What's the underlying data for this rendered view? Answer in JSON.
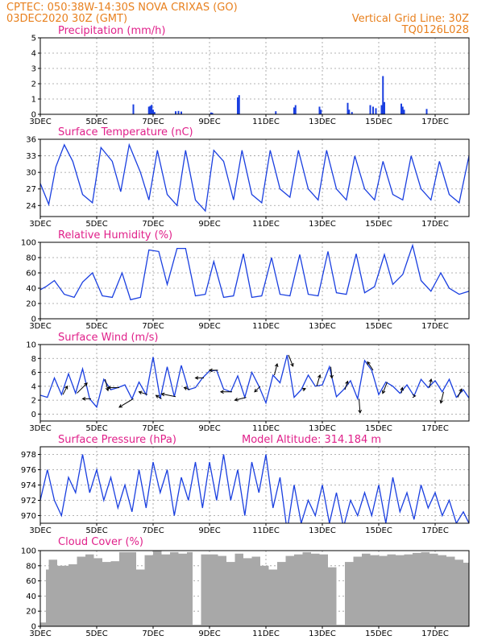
{
  "header": {
    "left_line1": "CPTEC:   050:38W-14:30S   NOVA CRIXAS (GO)",
    "left_line2": "03DEC2020 30Z (GMT)",
    "right_line1": "Vertical Grid Line: 30Z",
    "right_line2": "TQ0126L028"
  },
  "colors": {
    "header": "#e8801e",
    "title": "#e0208a",
    "line": "#1a3fe0",
    "bar": "#1a3fe0",
    "cloud": "#a8a8a8",
    "vector": "#000000"
  },
  "x_axis": {
    "ticks": [
      "3DEC",
      "5DEC",
      "7DEC",
      "9DEC",
      "11DEC",
      "13DEC",
      "15DEC",
      "17DEC"
    ],
    "tick_days": [
      3,
      5,
      7,
      9,
      11,
      13,
      15,
      17
    ],
    "range_days": [
      3,
      18.2
    ]
  },
  "chart_data": [
    {
      "type": "bar",
      "title": "Precipitation (mm/h)",
      "ylim": [
        0,
        5
      ],
      "yticks": [
        0,
        1,
        2,
        3,
        4,
        5
      ],
      "x": [
        6.3,
        6.85,
        6.9,
        6.95,
        7.0,
        7.05,
        7.8,
        7.9,
        8.0,
        9.05,
        9.1,
        10.0,
        10.05,
        11.35,
        12.0,
        12.05,
        12.9,
        12.95,
        13.9,
        13.95,
        14.05,
        14.7,
        14.8,
        14.9,
        15.1,
        15.15,
        15.2,
        15.8,
        15.85,
        15.9,
        16.7
      ],
      "values": [
        0.65,
        0.5,
        0.55,
        0.62,
        0.3,
        0.15,
        0.2,
        0.22,
        0.18,
        0.12,
        0.1,
        1.1,
        1.25,
        0.2,
        0.45,
        0.6,
        0.5,
        0.3,
        0.75,
        0.3,
        0.15,
        0.6,
        0.5,
        0.4,
        0.6,
        2.5,
        0.8,
        0.7,
        0.5,
        0.3,
        0.35
      ]
    },
    {
      "type": "line",
      "title": "Surface Temperature (nC)",
      "ylim": [
        22,
        36
      ],
      "yticks": [
        24,
        27,
        30,
        33,
        36
      ],
      "x": [
        3.0,
        3.3,
        3.55,
        3.85,
        4.15,
        4.5,
        4.85,
        5.15,
        5.55,
        5.85,
        6.15,
        6.55,
        6.85,
        7.15,
        7.5,
        7.85,
        8.15,
        8.5,
        8.85,
        9.15,
        9.5,
        9.85,
        10.15,
        10.5,
        10.85,
        11.15,
        11.5,
        11.85,
        12.15,
        12.5,
        12.85,
        13.15,
        13.5,
        13.85,
        14.15,
        14.5,
        14.85,
        15.15,
        15.5,
        15.85,
        16.15,
        16.5,
        16.85,
        17.15,
        17.5,
        17.85,
        18.2
      ],
      "values": [
        28,
        24.2,
        31,
        35,
        32,
        26,
        24.5,
        34.5,
        32,
        26.5,
        35,
        30,
        25,
        34,
        26,
        24,
        34,
        25,
        23,
        34,
        32,
        25,
        34,
        26,
        24.5,
        34,
        27,
        25.5,
        34,
        27,
        25,
        34,
        27,
        25,
        33,
        27,
        25,
        32,
        26,
        25,
        33,
        27,
        25,
        32,
        26,
        24.5,
        33
      ]
    },
    {
      "type": "line",
      "title": "Relative Humidity (%)",
      "ylim": [
        0,
        100
      ],
      "yticks": [
        0,
        20,
        40,
        60,
        80,
        100
      ],
      "x": [
        3.0,
        3.2,
        3.5,
        3.85,
        4.2,
        4.5,
        4.85,
        5.2,
        5.55,
        5.9,
        6.2,
        6.55,
        6.85,
        7.2,
        7.5,
        7.85,
        8.15,
        8.5,
        8.85,
        9.15,
        9.5,
        9.85,
        10.2,
        10.5,
        10.85,
        11.2,
        11.5,
        11.85,
        12.2,
        12.5,
        12.85,
        13.2,
        13.5,
        13.85,
        14.2,
        14.5,
        14.85,
        15.2,
        15.5,
        15.85,
        16.2,
        16.5,
        16.85,
        17.2,
        17.5,
        17.85,
        18.2
      ],
      "values": [
        38,
        42,
        50,
        32,
        28,
        48,
        60,
        30,
        28,
        60,
        25,
        28,
        90,
        88,
        45,
        92,
        92,
        30,
        32,
        75,
        28,
        30,
        85,
        28,
        30,
        80,
        32,
        30,
        84,
        32,
        30,
        88,
        34,
        32,
        85,
        34,
        42,
        84,
        45,
        58,
        96,
        50,
        36,
        60,
        40,
        32,
        36
      ]
    },
    {
      "type": "line",
      "title": "Surface Wind (m/s)",
      "ylim": [
        -1,
        10
      ],
      "yticks": [
        0,
        2,
        4,
        6,
        8,
        10
      ],
      "x": [
        3.0,
        3.25,
        3.5,
        3.75,
        4.0,
        4.25,
        4.5,
        4.75,
        5.0,
        5.25,
        5.5,
        5.75,
        6.0,
        6.25,
        6.5,
        6.75,
        7.0,
        7.25,
        7.5,
        7.75,
        8.0,
        8.25,
        8.5,
        8.75,
        9.0,
        9.25,
        9.5,
        9.75,
        10.0,
        10.25,
        10.5,
        10.75,
        11.0,
        11.25,
        11.5,
        11.75,
        12.0,
        12.25,
        12.5,
        12.75,
        13.0,
        13.25,
        13.5,
        13.75,
        14.0,
        14.25,
        14.5,
        14.75,
        15.0,
        15.25,
        15.5,
        15.75,
        16.0,
        16.25,
        16.5,
        16.75,
        17.0,
        17.25,
        17.5,
        17.75,
        18.0,
        18.2
      ],
      "values": [
        2.7,
        2.4,
        5.2,
        2.8,
        5.8,
        3.0,
        6.5,
        2.2,
        1.0,
        5.0,
        3.5,
        3.8,
        4.2,
        2.2,
        4.6,
        2.8,
        8.2,
        2.2,
        6.8,
        2.5,
        7.0,
        3.5,
        3.8,
        5.2,
        6.2,
        6.3,
        3.6,
        3.2,
        5.5,
        2.4,
        6.0,
        4.0,
        1.6,
        5.6,
        4.5,
        8.5,
        2.4,
        3.5,
        5.6,
        4.0,
        4.2,
        6.8,
        2.5,
        3.5,
        4.8,
        2.2,
        7.7,
        6.3,
        2.8,
        4.6,
        4.0,
        3.0,
        4.2,
        2.6,
        5.0,
        3.8,
        4.8,
        3.2,
        5.0,
        2.4,
        3.5,
        2.3
      ],
      "vectors": {
        "x": [
          3.8,
          4.3,
          4.8,
          5.3,
          5.8,
          6.3,
          6.8,
          7.3,
          7.8,
          8.3,
          8.8,
          9.3,
          9.8,
          10.3,
          10.8,
          11.3,
          11.8,
          12.3,
          12.8,
          13.3,
          13.8,
          14.3,
          14.8,
          15.3,
          15.8,
          16.3,
          16.8,
          17.3,
          17.8
        ],
        "u": [
          0.8,
          1.8,
          -1.5,
          0.5,
          -2.0,
          -2.5,
          -1.5,
          -1.0,
          -2.5,
          -1.0,
          -1.5,
          -1.5,
          -2.0,
          -2.0,
          -1.0,
          0.5,
          0.8,
          0.5,
          0.6,
          0.2,
          0.5,
          0.2,
          -1.0,
          -0.8,
          0.2,
          0.0,
          0.3,
          -0.5,
          0.7
        ],
        "v": [
          1.5,
          1.8,
          0.0,
          -2.0,
          0.0,
          -1.5,
          0.5,
          0.6,
          0.5,
          0.4,
          0.0,
          0.0,
          0.0,
          -0.5,
          -1.0,
          2.0,
          -2.0,
          0.2,
          2.0,
          -2.0,
          1.5,
          -2.5,
          1.5,
          -2.0,
          1.0,
          0.0,
          1.5,
          -2.0,
          1.5
        ]
      }
    },
    {
      "type": "line",
      "title": "Surface Pressure (hPa)",
      "subtitle": "Model Altitude: 314.184 m",
      "ylim": [
        969,
        979
      ],
      "yticks": [
        970,
        972,
        974,
        976,
        978
      ],
      "x": [
        3.0,
        3.25,
        3.5,
        3.75,
        4.0,
        4.25,
        4.5,
        4.75,
        5.0,
        5.25,
        5.5,
        5.75,
        6.0,
        6.25,
        6.5,
        6.75,
        7.0,
        7.25,
        7.5,
        7.75,
        8.0,
        8.25,
        8.5,
        8.75,
        9.0,
        9.25,
        9.5,
        9.75,
        10.0,
        10.25,
        10.5,
        10.75,
        11.0,
        11.25,
        11.5,
        11.75,
        12.0,
        12.25,
        12.5,
        12.75,
        13.0,
        13.25,
        13.5,
        13.75,
        14.0,
        14.25,
        14.5,
        14.75,
        15.0,
        15.25,
        15.5,
        15.75,
        16.0,
        16.25,
        16.5,
        16.75,
        17.0,
        17.25,
        17.5,
        17.75,
        18.0,
        18.2
      ],
      "values": [
        972,
        976,
        972,
        970,
        975,
        973,
        978,
        973,
        976,
        972,
        975,
        971,
        974,
        970.5,
        976,
        971,
        977,
        973,
        976,
        970,
        975,
        972,
        977,
        971,
        977,
        972,
        978,
        972,
        976,
        970,
        977,
        973,
        978,
        971,
        975,
        968,
        974,
        969,
        972,
        970,
        974,
        969,
        973,
        968.5,
        972,
        970,
        973,
        970,
        974,
        969,
        975,
        970.5,
        973,
        969.5,
        974,
        971,
        973,
        970,
        972,
        969,
        970.5,
        969
      ]
    },
    {
      "type": "bar",
      "title": "Cloud Cover (%)",
      "ylim": [
        0,
        100
      ],
      "yticks": [
        0,
        20,
        40,
        60,
        80,
        100
      ],
      "x": [
        3.0,
        3.2,
        3.3,
        3.6,
        4.0,
        4.3,
        4.6,
        4.9,
        5.2,
        5.5,
        5.8,
        6.1,
        6.4,
        6.7,
        7.0,
        7.3,
        7.6,
        7.9,
        8.2,
        8.4,
        8.7,
        9.0,
        9.3,
        9.6,
        9.9,
        10.2,
        10.5,
        10.8,
        11.1,
        11.4,
        11.7,
        12.0,
        12.3,
        12.6,
        12.9,
        13.2,
        13.5,
        13.8,
        14.1,
        14.4,
        14.7,
        15.0,
        15.3,
        15.6,
        15.9,
        16.2,
        16.5,
        16.8,
        17.1,
        17.4,
        17.7,
        18.0
      ],
      "values": [
        5,
        75,
        88,
        80,
        82,
        92,
        95,
        90,
        85,
        86,
        98,
        98,
        75,
        94,
        100,
        95,
        98,
        96,
        98,
        2,
        95,
        95,
        93,
        85,
        96,
        90,
        92,
        80,
        75,
        85,
        93,
        95,
        98,
        96,
        95,
        78,
        2,
        85,
        92,
        96,
        94,
        93,
        95,
        94,
        95,
        97,
        98,
        96,
        94,
        92,
        88,
        84
      ]
    }
  ]
}
